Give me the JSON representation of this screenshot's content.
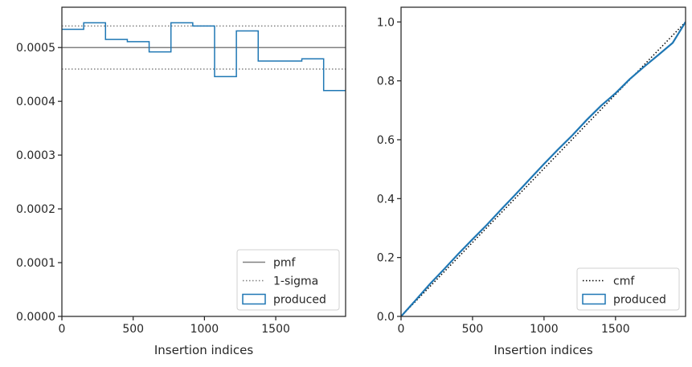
{
  "chart_data": [
    {
      "type": "histogram-step",
      "xlabel": "Insertion indices",
      "ylabel": "",
      "xlim": [
        0,
        1990
      ],
      "ylim": [
        0,
        0.000575
      ],
      "xticks": [
        0,
        500,
        1000,
        1500
      ],
      "xtick_labels": [
        "0",
        "500",
        "1000",
        "1500"
      ],
      "yticks": [
        0,
        0.0001,
        0.0002,
        0.0003,
        0.0004,
        0.0005
      ],
      "ytick_labels": [
        "0.0000",
        "0.0001",
        "0.0002",
        "0.0003",
        "0.0004",
        "0.0005"
      ],
      "grid": false,
      "legend_position": "lower right",
      "reference_lines": [
        {
          "name": "pmf",
          "style": "solid",
          "color": "#808080",
          "y": 0.0005
        },
        {
          "name": "1-sigma",
          "style": "dotted",
          "color": "#808080",
          "y": 0.00054
        },
        {
          "name": "1-sigma",
          "style": "dotted",
          "color": "#808080",
          "y": 0.00046
        }
      ],
      "series": [
        {
          "name": "produced",
          "color": "#1f77b4",
          "bin_edges": [
            0,
            153,
            306,
            459,
            612,
            765,
            918,
            1071,
            1224,
            1377,
            1530,
            1683,
            1836,
            1990
          ],
          "values": [
            0.000534,
            0.000546,
            0.000515,
            0.000511,
            0.000492,
            0.000546,
            0.00054,
            0.000446,
            0.000531,
            0.000475,
            0.000475,
            0.000479,
            0.00042
          ]
        }
      ],
      "legend": [
        {
          "label": "pmf",
          "kind": "line-solid",
          "color": "#808080"
        },
        {
          "label": "1-sigma",
          "kind": "line-dotted",
          "color": "#808080"
        },
        {
          "label": "produced",
          "kind": "patch",
          "color": "#1f77b4"
        }
      ]
    },
    {
      "type": "line",
      "xlabel": "Insertion indices",
      "ylabel": "",
      "xlim": [
        0,
        1990
      ],
      "ylim": [
        0,
        1.05
      ],
      "xticks": [
        0,
        500,
        1000,
        1500
      ],
      "xtick_labels": [
        "0",
        "500",
        "1000",
        "1500"
      ],
      "yticks": [
        0,
        0.2,
        0.4,
        0.6,
        0.8,
        1.0
      ],
      "ytick_labels": [
        "0.0",
        "0.2",
        "0.4",
        "0.6",
        "0.8",
        "1.0"
      ],
      "grid": false,
      "legend_position": "lower right",
      "series": [
        {
          "name": "cmf",
          "style": "dotted",
          "color": "#000000",
          "x": [
            0,
            1990
          ],
          "y": [
            0,
            1.0
          ]
        },
        {
          "name": "produced",
          "style": "solid",
          "color": "#1f77b4",
          "x": [
            0,
            100,
            200,
            300,
            400,
            500,
            600,
            700,
            800,
            900,
            1000,
            1100,
            1200,
            1300,
            1400,
            1500,
            1600,
            1700,
            1800,
            1900,
            1990
          ],
          "y": [
            0,
            0.054,
            0.109,
            0.16,
            0.212,
            0.262,
            0.311,
            0.363,
            0.414,
            0.466,
            0.518,
            0.568,
            0.616,
            0.668,
            0.716,
            0.758,
            0.806,
            0.848,
            0.888,
            0.929,
            1.0
          ]
        }
      ],
      "legend": [
        {
          "label": "cmf",
          "kind": "line-dotted",
          "color": "#000000"
        },
        {
          "label": "produced",
          "kind": "patch",
          "color": "#1f77b4"
        }
      ]
    }
  ]
}
